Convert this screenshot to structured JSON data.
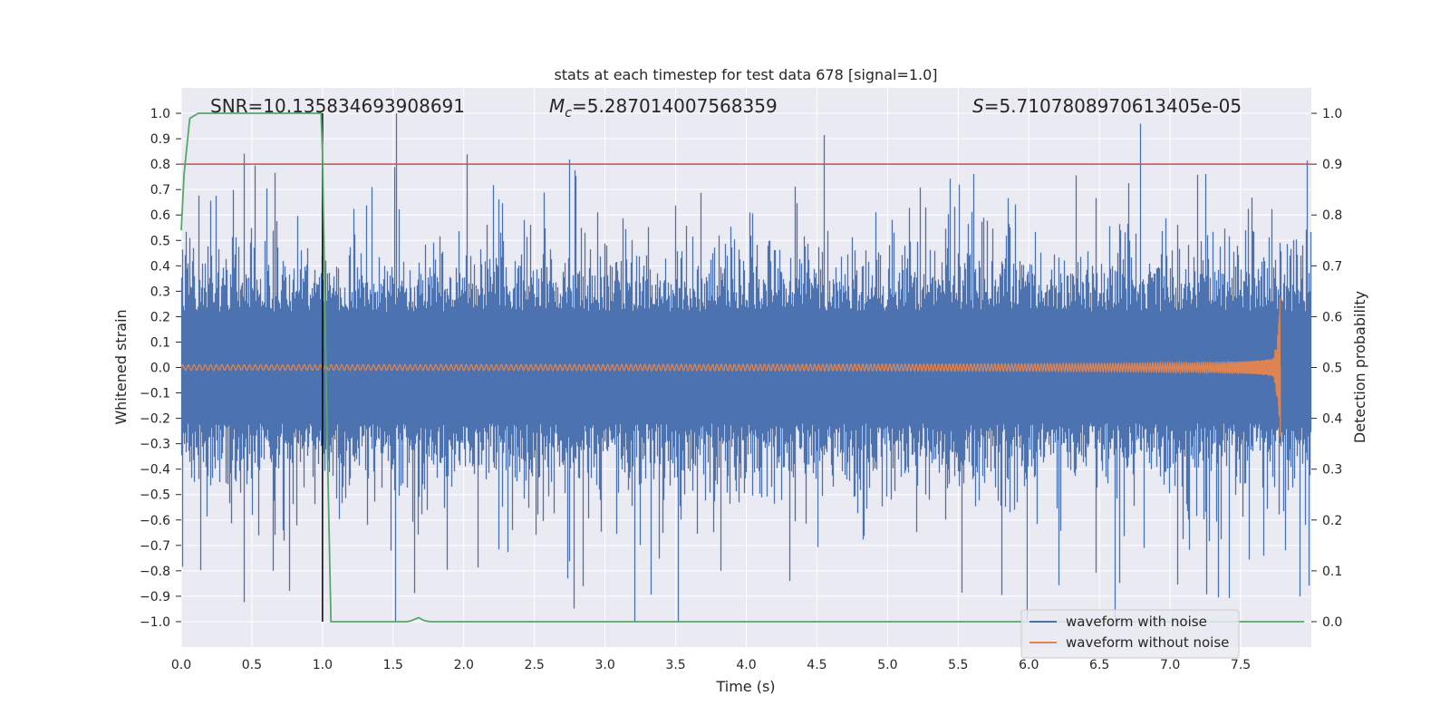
{
  "chart_data": {
    "type": "line",
    "title": "stats at each timestep for test data 678 [signal=1.0]",
    "xlabel": "Time (s)",
    "ylabel": "Whitened strain",
    "y2label": "Detection probability",
    "xlim": [
      0.0,
      8.0
    ],
    "ylim": [
      -1.1,
      1.1
    ],
    "y2lim": [
      -0.05,
      1.05
    ],
    "x_ticks": [
      "0.0",
      "0.5",
      "1.0",
      "1.5",
      "2.0",
      "2.5",
      "3.0",
      "3.5",
      "4.0",
      "4.5",
      "5.0",
      "5.5",
      "6.0",
      "6.5",
      "7.0",
      "7.5"
    ],
    "y_ticks": [
      "1.0",
      "0.9",
      "0.8",
      "0.7",
      "0.6",
      "0.5",
      "0.4",
      "0.3",
      "0.2",
      "0.1",
      "0.0",
      "−0.1",
      "−0.2",
      "−0.3",
      "−0.4",
      "−0.5",
      "−0.6",
      "−0.7",
      "−0.8",
      "−0.9",
      "−1.0"
    ],
    "y2_ticks": [
      "1.0",
      "0.9",
      "0.8",
      "0.7",
      "0.6",
      "0.5",
      "0.4",
      "0.3",
      "0.2",
      "0.1",
      "0.0"
    ],
    "annotations": {
      "snr": "SNR=10.135834693908691",
      "mc_symbol": "M",
      "mc_sub": "c",
      "mc_value": "=5.287014007568359",
      "s_symbol": "S",
      "s_value": "=5.7107808970613405e-05"
    },
    "threshold": {
      "y2": 0.9,
      "color": "#c44e52"
    },
    "vertical_marker": {
      "x": 1.0,
      "y_from": -1.0,
      "y_to": 1.0,
      "color": "#000000"
    },
    "merger_time": 7.78,
    "series": [
      {
        "name": "waveform with noise",
        "color": "#4c72b0",
        "axis": "left",
        "kind": "noisy strain, band ±0.4 with spikes to ±1.0"
      },
      {
        "name": "waveform without noise",
        "color": "#dd8452",
        "axis": "left",
        "kind": "chirp, amplitude 0.01 rising to 0.3 at merger"
      },
      {
        "name": "detection probability",
        "color": "#55a868",
        "axis": "right",
        "x": [
          0.0,
          0.02,
          0.06,
          0.12,
          0.5,
          0.99,
          1.0,
          1.03,
          1.06,
          1.6,
          1.63,
          1.68,
          1.72,
          1.76,
          2.0,
          7.0,
          7.95
        ],
        "values": [
          0.77,
          0.88,
          0.99,
          1.0,
          1.0,
          1.0,
          0.92,
          0.4,
          0.0,
          0.0,
          0.002,
          0.008,
          0.002,
          0.0,
          0.0,
          0.0,
          0.0
        ]
      }
    ],
    "legend": {
      "placement": "lower-right",
      "entries": [
        "waveform with noise",
        "waveform without noise"
      ]
    }
  }
}
